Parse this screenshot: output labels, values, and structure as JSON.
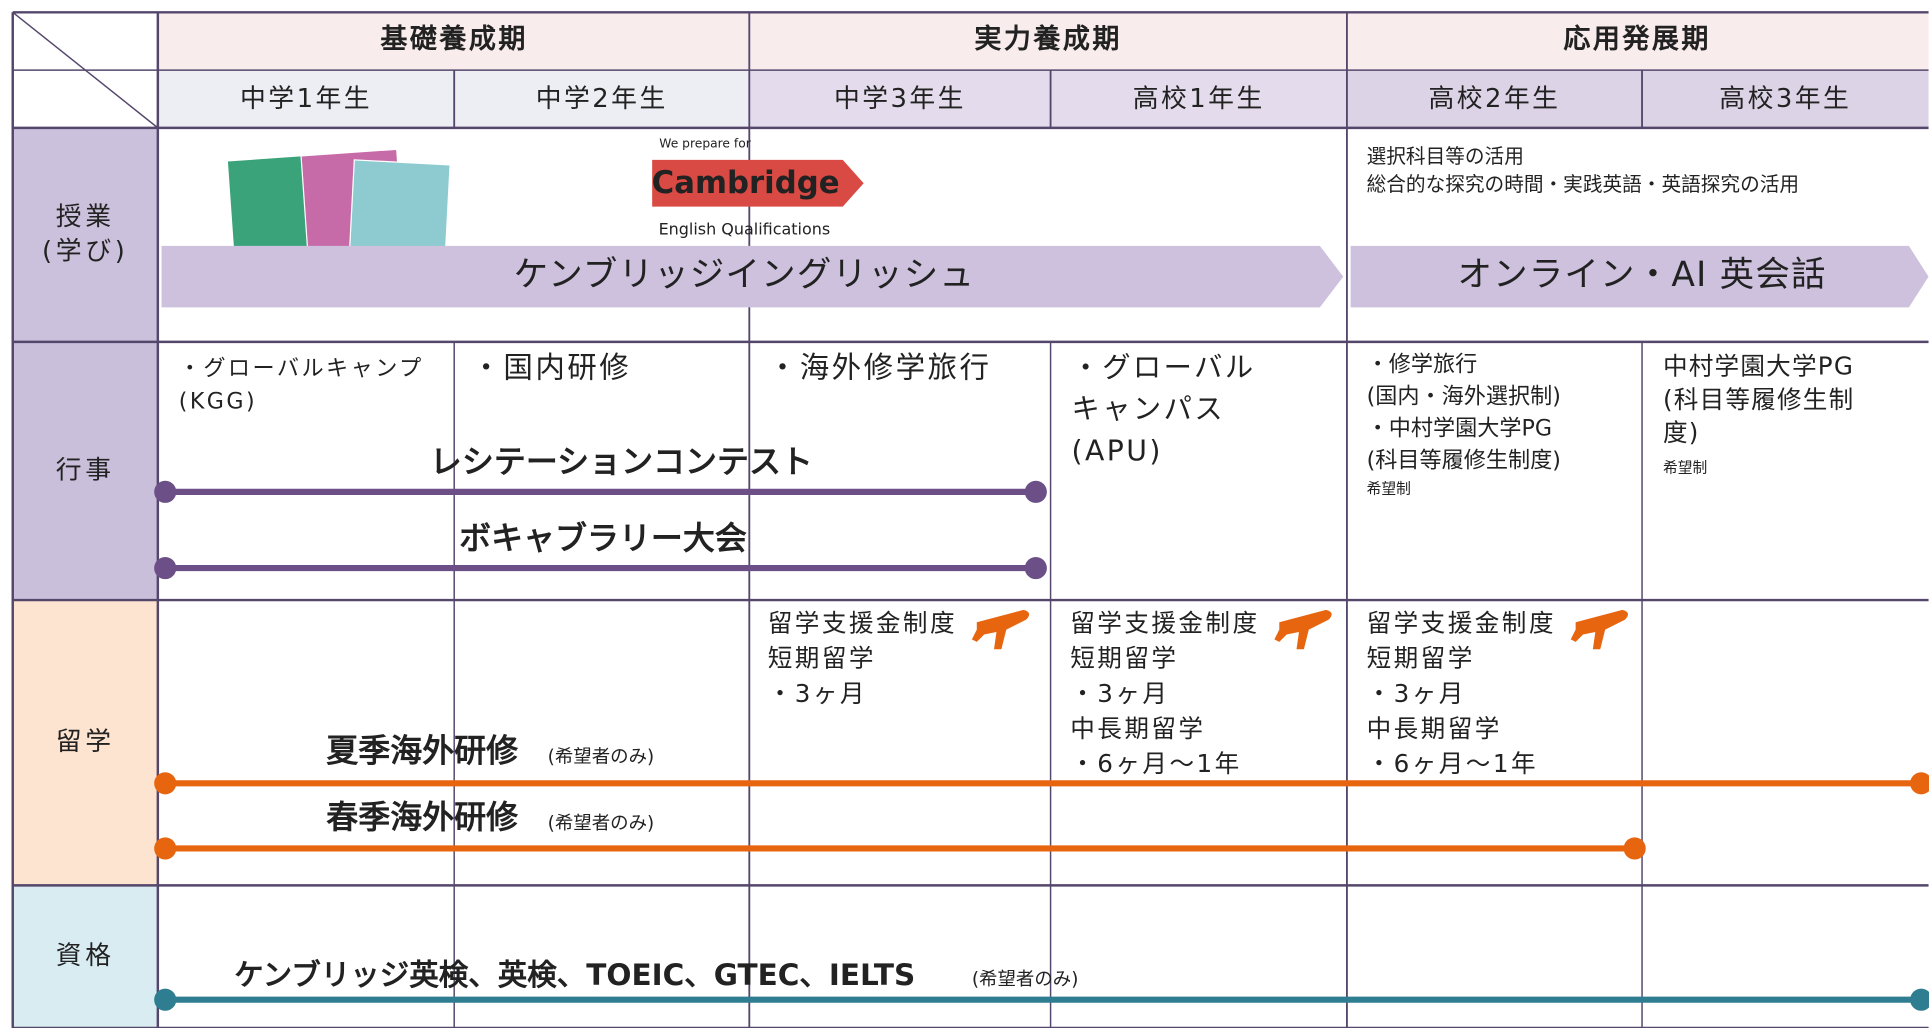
{
  "phases": [
    "基礎養成期",
    "実力養成期",
    "応用発展期"
  ],
  "grades": [
    "中学1年生",
    "中学2年生",
    "中学3年生",
    "高校1年生",
    "高校2年生",
    "高校3年生"
  ],
  "row_labels": [
    [
      "授業",
      "(学び)"
    ],
    [
      "行事"
    ],
    [
      "留学"
    ],
    [
      "資格"
    ]
  ],
  "lessons": {
    "logo": {
      "top": "We prepare for",
      "name": "Cambridge",
      "bottom": "English Qualifications"
    },
    "band1": "ケンブリッジイングリッシュ",
    "notes": [
      "選択科目等の活用",
      "総合的な探究の時間・実践英語・英語探究の活用"
    ],
    "band2": "オンライン・AI 英会話"
  },
  "events": {
    "cells": [
      [
        "・グローバルキャンプ",
        "(KGG)"
      ],
      [
        "・国内研修"
      ],
      [
        "・海外修学旅行"
      ],
      [
        "・グローバル",
        "キャンパス",
        "(APU)"
      ]
    ],
    "senior2": {
      "lines": [
        "・修学旅行",
        "(国内・海外選択制)"
      ],
      "pg_lines": [
        "・中村学園大学PG",
        "(科目等履修生制度)"
      ],
      "note": "希望制"
    },
    "senior3": {
      "pg_lines": [
        "中村学園大学PG",
        "(科目等履修生制",
        "度)"
      ],
      "note": "希望制"
    },
    "bars": [
      "レシテーションコンテスト",
      "ボキャブラリー大会"
    ]
  },
  "study_abroad": {
    "cells": [
      [
        "留学支援金制度",
        "短期留学",
        "・3ヶ月"
      ],
      [
        "留学支援金制度",
        "短期留学",
        "・3ヶ月",
        "中長期留学",
        "・6ヶ月〜1年"
      ],
      [
        "留学支援金制度",
        "短期留学",
        "・3ヶ月",
        "中長期留学",
        "・6ヶ月〜1年"
      ]
    ],
    "bars": [
      {
        "name": "夏季海外研修",
        "note": "(希望者のみ)"
      },
      {
        "name": "春季海外研修",
        "note": "(希望者のみ)"
      }
    ]
  },
  "qualifications": {
    "bar": "ケンブリッジ英検、英検、TOEIC、GTEC、IELTS",
    "note": "(希望者のみ)"
  }
}
